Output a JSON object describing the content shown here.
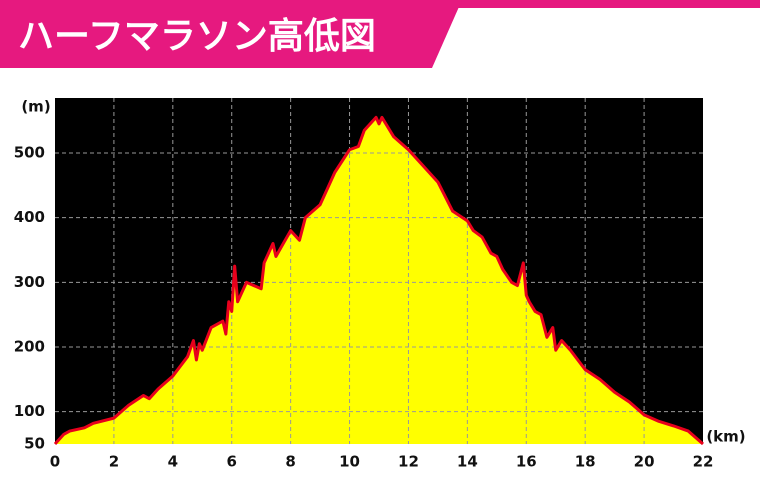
{
  "chart_data": {
    "type": "area",
    "title": "ハーフマラソン高低図",
    "x_label": "(km)",
    "y_label": "(m)",
    "x": [
      0,
      0.3,
      0.5,
      1,
      1.3,
      2,
      2.5,
      3,
      3.2,
      3.5,
      4,
      4.5,
      4.7,
      4.8,
      4.9,
      5,
      5.3,
      5.7,
      5.8,
      5.9,
      6,
      6.1,
      6.2,
      6.5,
      7,
      7.1,
      7.4,
      7.5,
      8,
      8.3,
      8.5,
      9,
      9.5,
      10,
      10.3,
      10.5,
      10.9,
      11,
      11.1,
      11.5,
      12,
      12.5,
      13,
      13.5,
      14,
      14.2,
      14.5,
      14.8,
      15,
      15.2,
      15.5,
      15.7,
      15.9,
      16,
      16.1,
      16.3,
      16.5,
      16.7,
      16.9,
      17,
      17.2,
      17.5,
      18,
      18.5,
      19,
      19.5,
      20,
      20.5,
      21,
      21.5,
      22
    ],
    "values": [
      50,
      65,
      70,
      75,
      82,
      90,
      110,
      125,
      120,
      135,
      155,
      185,
      210,
      180,
      205,
      195,
      230,
      240,
      220,
      270,
      255,
      325,
      270,
      300,
      290,
      330,
      360,
      340,
      380,
      365,
      400,
      420,
      470,
      505,
      510,
      535,
      555,
      545,
      555,
      525,
      505,
      480,
      455,
      410,
      395,
      380,
      370,
      345,
      340,
      320,
      300,
      295,
      330,
      280,
      270,
      255,
      250,
      215,
      230,
      195,
      210,
      195,
      165,
      150,
      130,
      115,
      95,
      85,
      78,
      70,
      50
    ],
    "fill_color": "#ffff00",
    "line_color": "#e8001c",
    "xlim": [
      0,
      22
    ],
    "ylim": [
      50,
      585
    ],
    "xticks": [
      0,
      2,
      4,
      6,
      8,
      10,
      12,
      14,
      16,
      18,
      20,
      22
    ],
    "yticks": [
      50,
      100,
      200,
      300,
      400,
      500
    ],
    "grid": true
  }
}
